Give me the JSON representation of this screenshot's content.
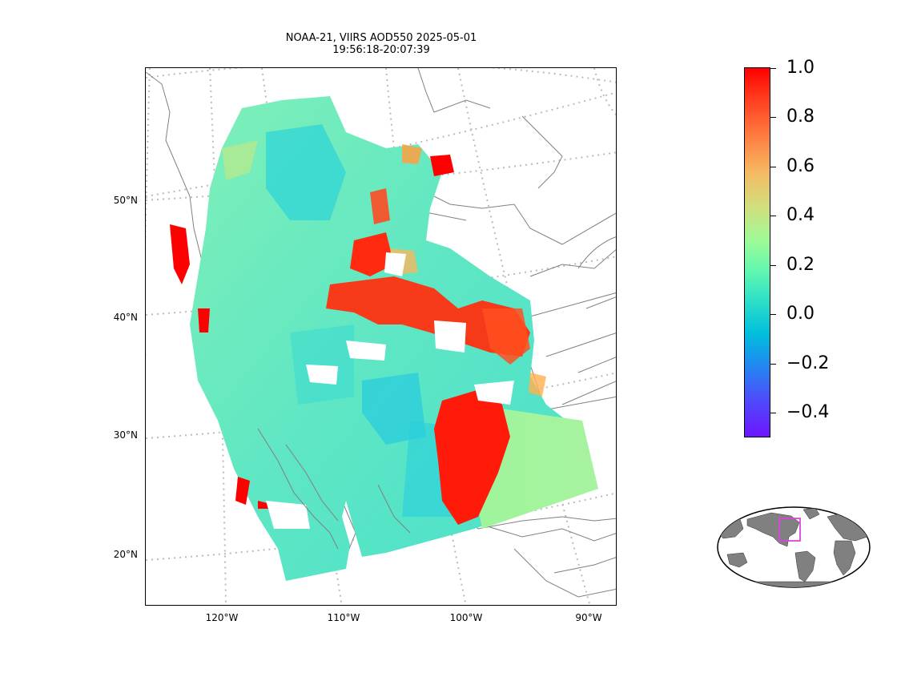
{
  "title": {
    "line1": "NOAA-21, VIIRS AOD550 2025-05-01",
    "line2": "19:56:18-20:07:39"
  },
  "map": {
    "projection": "lambert-conformal",
    "region": "western and central North America",
    "colormap": "rainbow",
    "lat_labels": [
      "50°N",
      "40°N",
      "30°N",
      "20°N"
    ],
    "lon_labels": [
      "120°W",
      "110°W",
      "100°W",
      "90°W"
    ],
    "gridline_color": "#bbbbbb",
    "coastline_color": "#808080"
  },
  "colorbar": {
    "ticks": [
      "1.0",
      "0.8",
      "0.6",
      "0.4",
      "0.2",
      "0.0",
      "−0.2",
      "−0.4"
    ],
    "min": -0.5,
    "max": 1.0,
    "colors": [
      "#ff0000",
      "#ff7a3f",
      "#cfe07e",
      "#62f7b0",
      "#00bfdc",
      "#4a52fb",
      "#6d15ff"
    ]
  },
  "inset": {
    "type": "globe-locator",
    "box_color": "#dd44dd",
    "land_color": "#808080"
  }
}
